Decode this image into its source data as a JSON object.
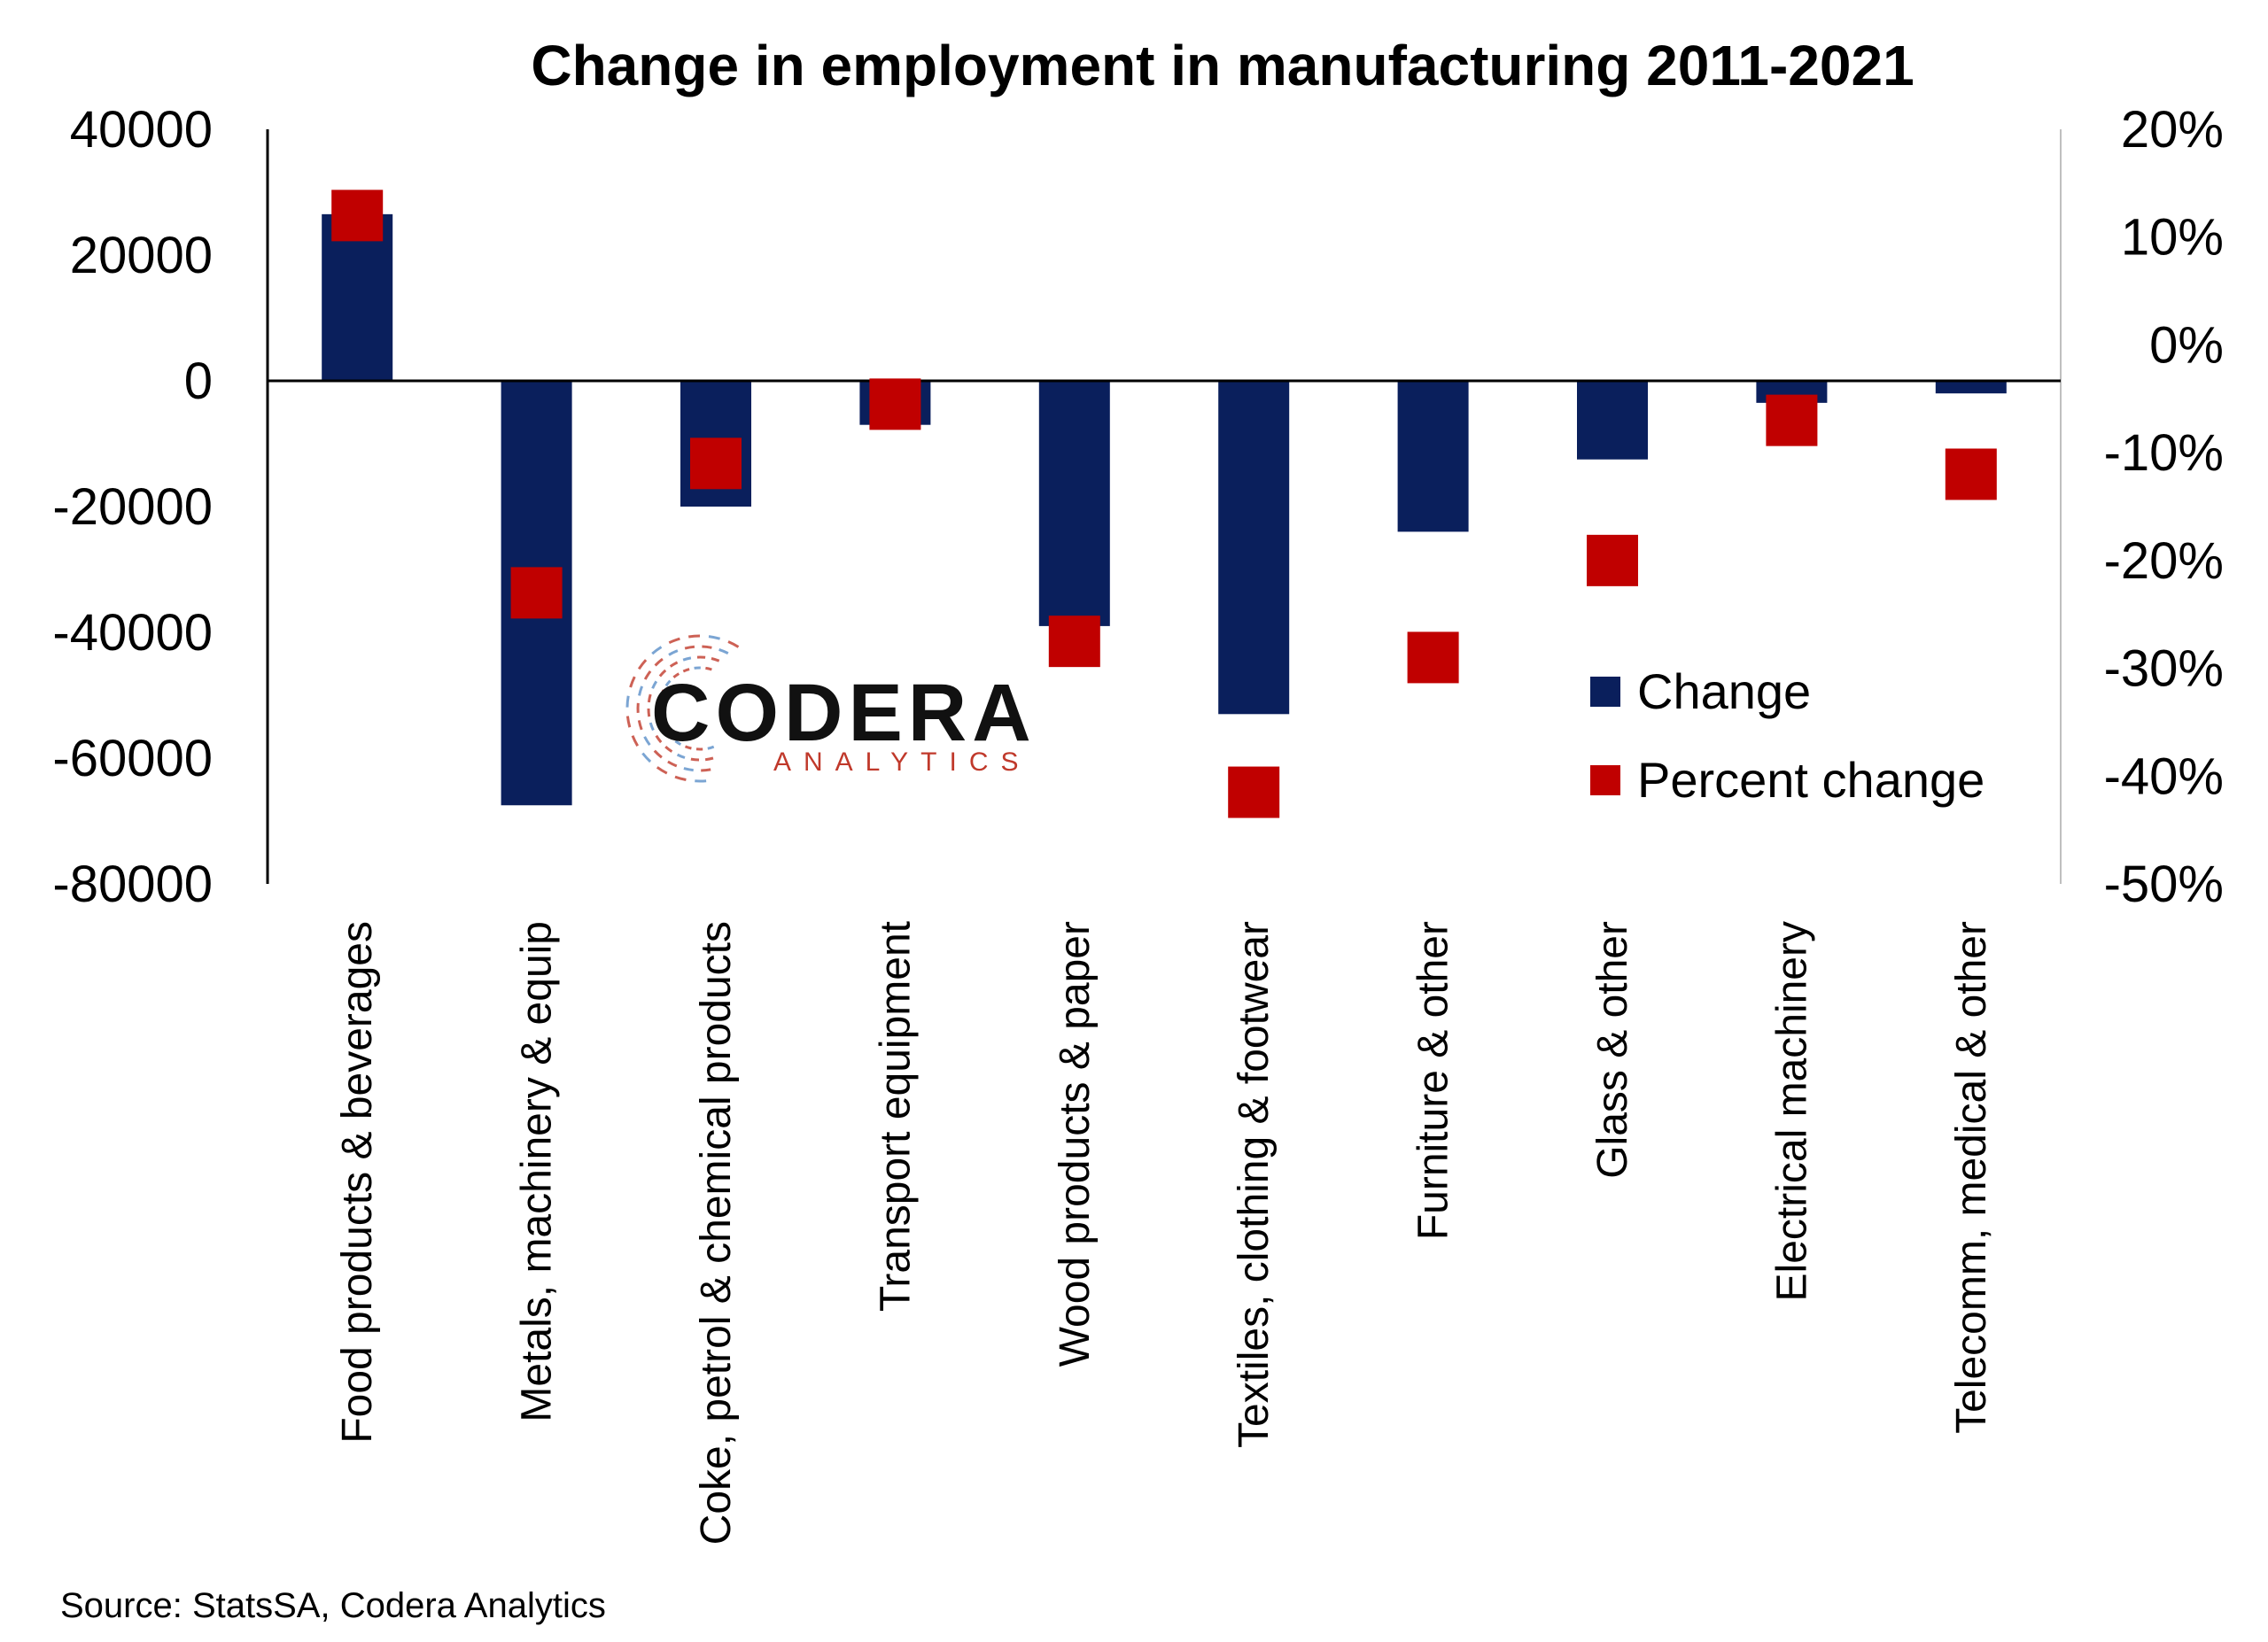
{
  "chart_data": {
    "type": "bar",
    "title": "Change in employment in manufacturing 2011-2021",
    "categories": [
      "Food products & beverages",
      "Metals, machinery & equip",
      "Coke, petrol & chemical products",
      "Transport equipment",
      "Wood products & paper",
      "Textiles, clothing & footwear",
      "Furniture & other",
      "Glass & other",
      "Electrical machinery",
      "Telecomm, medical & other"
    ],
    "series": [
      {
        "name": "Change",
        "type": "bar",
        "axis": "left",
        "color": "#0a1f5c",
        "values": [
          26500,
          -67500,
          -20000,
          -7000,
          -39000,
          -53000,
          -24000,
          -12500,
          -3500,
          -2000
        ]
      },
      {
        "name": "Percent change",
        "type": "scatter",
        "axis": "right",
        "color": "#c00000",
        "values": [
          12,
          -23,
          -11,
          -5.5,
          -27.5,
          -41.5,
          -29,
          -20,
          -7,
          -12
        ]
      }
    ],
    "y_left": {
      "ylim": [
        -80000,
        40000
      ],
      "ticks": [
        40000,
        20000,
        0,
        -20000,
        -40000,
        -60000,
        -80000
      ],
      "tick_labels": [
        "40000",
        "20000",
        "0",
        "-20000",
        "-40000",
        "-60000",
        "-80000"
      ]
    },
    "y_right": {
      "ylim": [
        -50,
        20
      ],
      "ticks": [
        20,
        10,
        0,
        -10,
        -20,
        -30,
        -40,
        -50
      ],
      "tick_labels": [
        "20%",
        "10%",
        "0%",
        "-10%",
        "-20%",
        "-30%",
        "-40%",
        "-50%"
      ]
    },
    "legend_position": "right",
    "grid": false
  },
  "logo": {
    "name": "CODERA",
    "subtitle": "ANALYTICS",
    "accent_red": "#c0392b",
    "accent_blue": "#5a8fc8"
  },
  "source": "Source: StatsSA, Codera Analytics"
}
